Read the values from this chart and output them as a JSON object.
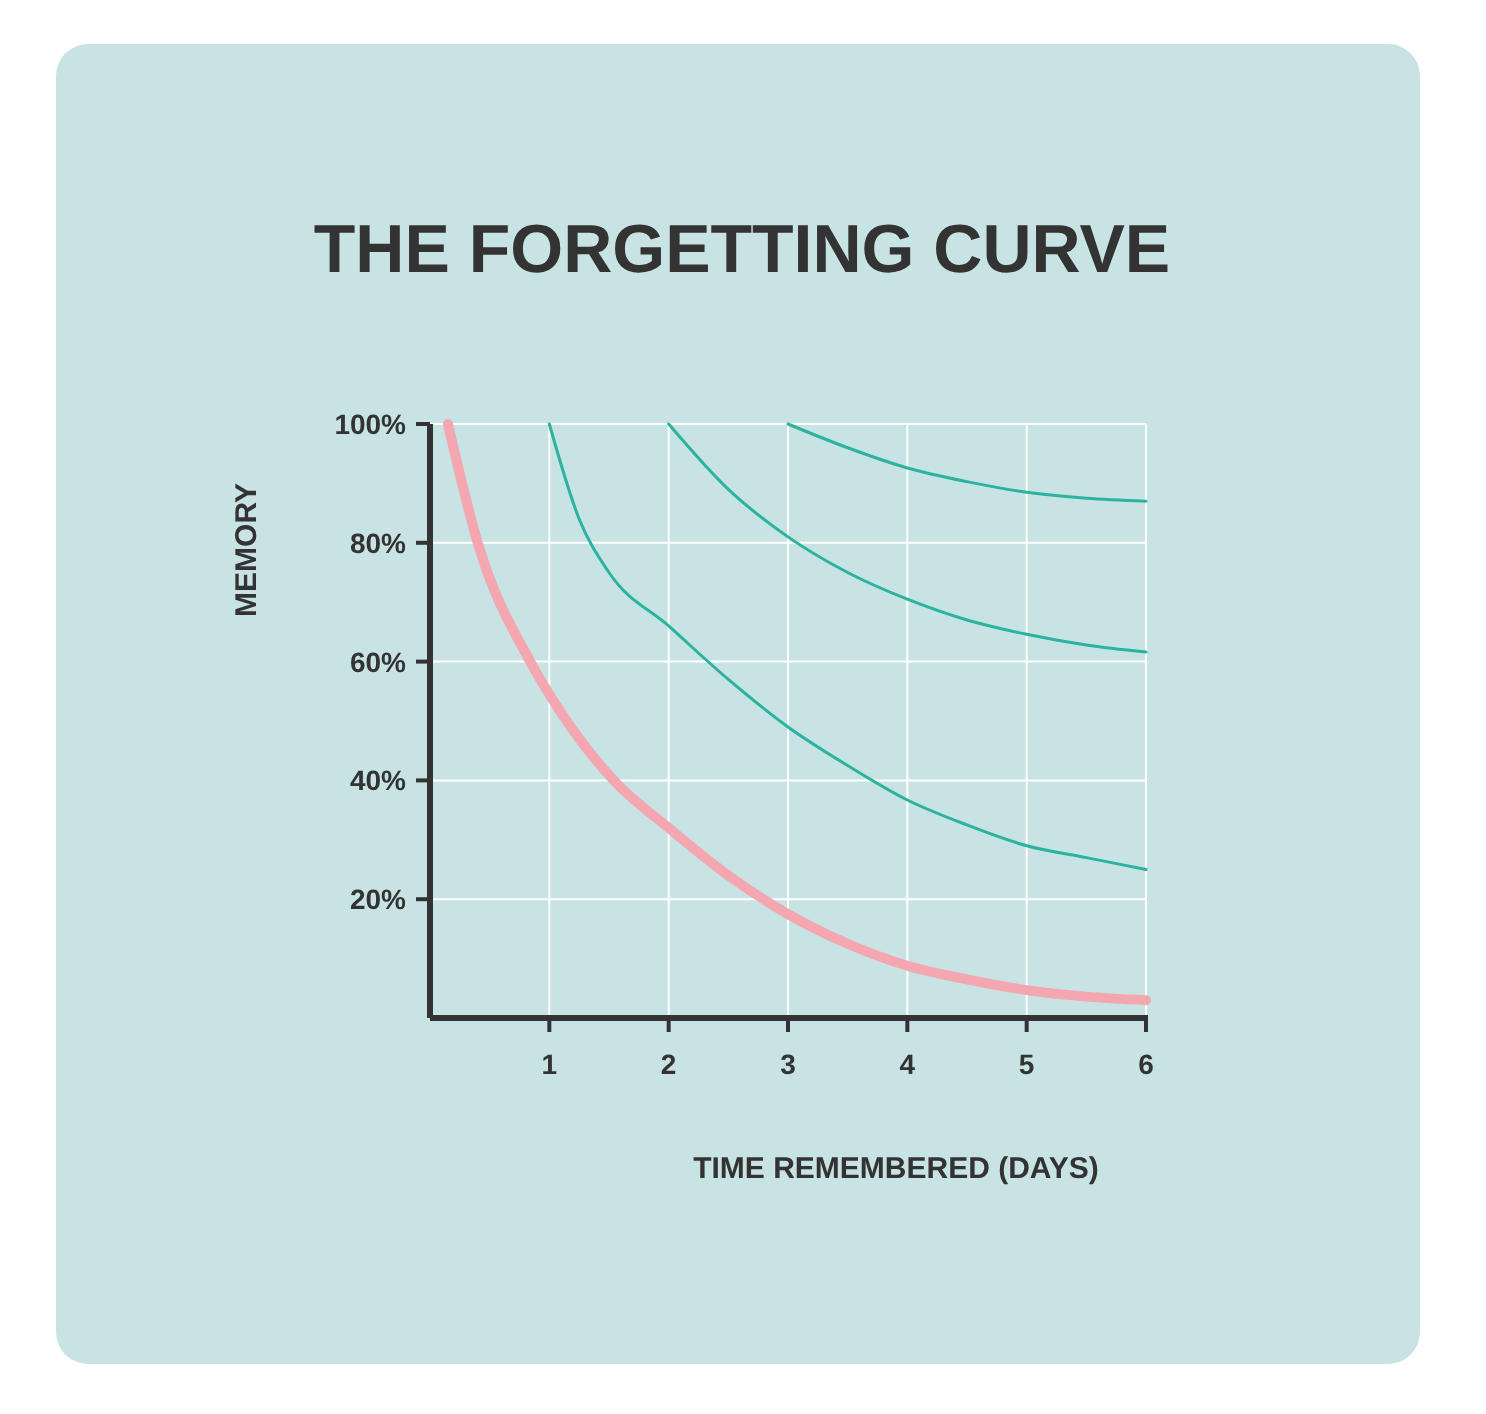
{
  "chart_data": {
    "type": "line",
    "title": "THE FORGETTING CURVE",
    "xlabel": "TIME REMEMBERED (DAYS)",
    "ylabel": "MEMORY",
    "xlim": [
      0,
      6
    ],
    "ylim": [
      0,
      100
    ],
    "xticks": [
      1,
      2,
      3,
      4,
      5,
      6
    ],
    "yticks": [
      {
        "value": 20,
        "label": "20%"
      },
      {
        "value": 40,
        "label": "40%"
      },
      {
        "value": 60,
        "label": "60%"
      },
      {
        "value": 80,
        "label": "80%"
      },
      {
        "value": 100,
        "label": "100%"
      }
    ],
    "grid": true,
    "marker": "none",
    "line_style": "solid",
    "series": [
      {
        "color": "#f4a7b0",
        "x": [
          0.15,
          0.4,
          0.84,
          1,
          1.54,
          2,
          2.5,
          3,
          3.5,
          4,
          4.5,
          5,
          5.5,
          6
        ],
        "values": [
          100,
          80,
          60,
          54.5,
          40,
          32,
          24,
          17.5,
          12.5,
          8.8,
          6.5,
          4.7,
          3.6,
          3
        ]
      },
      {
        "color": "#2bb3a0",
        "x": [
          1,
          1.25,
          1.5,
          2,
          2.5,
          3,
          3.5,
          4,
          4.5,
          5,
          5.5,
          6
        ],
        "values": [
          100,
          84,
          75,
          66,
          57,
          49,
          42.5,
          36.7,
          32.5,
          29,
          27,
          25
        ]
      },
      {
        "color": "#2bb3a0",
        "x": [
          2,
          2.5,
          3,
          3.5,
          4,
          4.5,
          5,
          5.5,
          6
        ],
        "values": [
          100,
          89,
          81,
          75,
          70.5,
          67,
          64.6,
          62.8,
          61.6
        ]
      },
      {
        "color": "#2bb3a0",
        "x": [
          3,
          3.5,
          4,
          4.5,
          5,
          5.5,
          6
        ],
        "values": [
          100,
          96,
          92.6,
          90.3,
          88.5,
          87.5,
          87
        ]
      }
    ]
  }
}
